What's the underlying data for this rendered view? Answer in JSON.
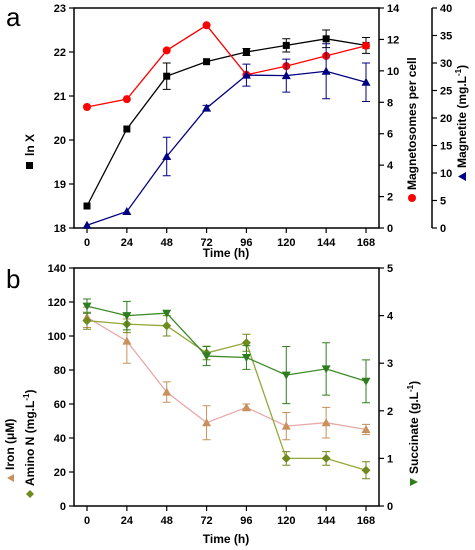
{
  "chart_data": [
    {
      "panel_label": "a",
      "type": "line",
      "x": [
        0,
        24,
        48,
        72,
        96,
        120,
        144,
        168
      ],
      "xlabel": "Time (h)",
      "xticks": [
        "0",
        "24",
        "48",
        "72",
        "96",
        "120",
        "144",
        "168"
      ],
      "axes": {
        "left": {
          "label": "ln X",
          "ylim": [
            18,
            23
          ],
          "ticks": [
            "18",
            "19",
            "20",
            "21",
            "22",
            "23"
          ]
        },
        "right1": {
          "label": "Magnetosomes per cell",
          "ylim": [
            0,
            14
          ],
          "ticks": [
            "0",
            "2",
            "4",
            "6",
            "8",
            "10",
            "12",
            "14"
          ]
        },
        "right2": {
          "label": "Magnetite (mg.L",
          "label_sup": "-1",
          "label_end": ")",
          "ylim": [
            0,
            40
          ],
          "ticks": [
            "0",
            "5",
            "10",
            "15",
            "20",
            "25",
            "30",
            "35",
            "40"
          ]
        }
      },
      "series": [
        {
          "axis": "left",
          "color": "#000000",
          "line_color": "#000000",
          "marker": "square",
          "values": [
            18.5,
            20.25,
            21.45,
            21.78,
            22.0,
            22.15,
            22.3,
            22.15
          ],
          "err": [
            0,
            0,
            0.3,
            0,
            0.08,
            0.15,
            0.2,
            0.18
          ]
        },
        {
          "axis": "right1",
          "color": "#ff0000",
          "line_color": "#ff0000",
          "marker": "circle",
          "values": [
            7.7,
            8.2,
            11.3,
            12.9,
            9.75,
            10.3,
            10.95,
            11.6
          ],
          "err": [
            0,
            0,
            0,
            0,
            0,
            0,
            0,
            0
          ]
        },
        {
          "axis": "right2",
          "color": "#000080",
          "line_color": "#000080",
          "marker": "triangle",
          "values": [
            0.5,
            3.0,
            13.0,
            21.8,
            27.8,
            27.7,
            28.5,
            26.5
          ],
          "err": [
            0,
            0,
            3.5,
            0.5,
            2.0,
            3.0,
            5.0,
            3.5
          ]
        }
      ]
    },
    {
      "panel_label": "b",
      "type": "line",
      "x": [
        0,
        24,
        48,
        72,
        96,
        120,
        144,
        168
      ],
      "xlabel": "Time (h)",
      "xticks": [
        "0",
        "24",
        "48",
        "72",
        "96",
        "120",
        "144",
        "168"
      ],
      "axes": {
        "left1": {
          "label": "Iron (",
          "label_mu": "μ",
          "label_end": "M)",
          "ylim": [
            0,
            140
          ],
          "ticks": [
            "0",
            "20",
            "40",
            "60",
            "80",
            "100",
            "120",
            "140"
          ]
        },
        "left2": {
          "label": "Amino N (mg.L",
          "label_sup": "-1",
          "label_end": ")"
        },
        "right": {
          "label": "Succinate (g.L",
          "label_sup": "-1",
          "label_end": ")",
          "ylim": [
            0,
            5
          ],
          "ticks": [
            "0",
            "1",
            "2",
            "3",
            "4",
            "5"
          ]
        }
      },
      "series": [
        {
          "axis": "left",
          "color": "#c8905a",
          "line_color": "#e7a9a9",
          "marker": "triangle",
          "values": [
            111,
            97,
            67,
            49,
            58,
            47,
            49,
            45
          ],
          "err": [
            6,
            13,
            6,
            10,
            2,
            8,
            9,
            3
          ]
        },
        {
          "axis": "left",
          "color": "#6f8a1e",
          "line_color": "#93a83a",
          "marker": "diamond",
          "values": [
            109,
            107,
            106,
            90,
            96,
            28,
            28,
            21
          ],
          "err": [
            5,
            5,
            6,
            4,
            5,
            4,
            4,
            5
          ]
        },
        {
          "axis": "right",
          "color": "#2e7d1e",
          "line_color": "#3d8a28",
          "marker": "triangle-down",
          "values": [
            4.2,
            4.0,
            4.05,
            3.15,
            3.12,
            2.75,
            2.88,
            2.62
          ],
          "err": [
            0.15,
            0.3,
            0.0,
            0.2,
            0.25,
            0.6,
            0.55,
            0.45
          ]
        }
      ]
    }
  ]
}
